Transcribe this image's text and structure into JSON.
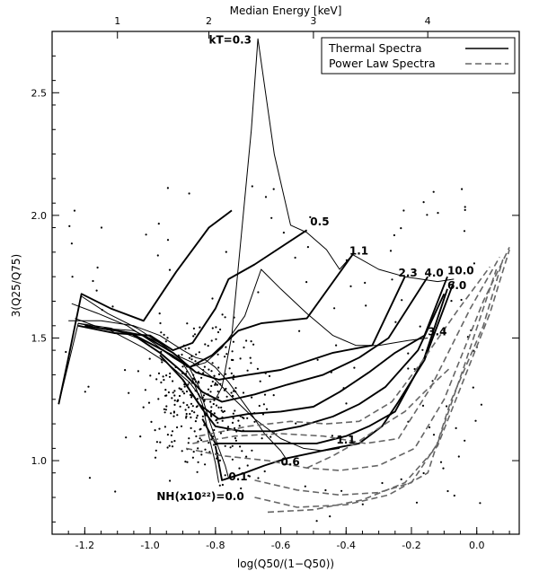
{
  "chart_data": {
    "type": "line",
    "title": "",
    "xlabel": "log(Q50/(1−Q50))",
    "ylabel": "3(Q25/Q75)",
    "top_axis_label": "Median Energy [keV]",
    "xlim": [
      -1.3,
      0.13
    ],
    "ylim": [
      0.7,
      2.75
    ],
    "x_ticks": [
      -1.2,
      -1.0,
      -0.8,
      -0.6,
      -0.4,
      -0.2,
      0.0
    ],
    "y_ticks": [
      1.0,
      1.5,
      2.0,
      2.5
    ],
    "top_ticks": [
      {
        "label": "1",
        "x": -1.1
      },
      {
        "label": "2",
        "x": -0.82
      },
      {
        "label": "3",
        "x": -0.5
      },
      {
        "label": "4",
        "x": -0.15
      }
    ],
    "legend": {
      "position": "top-right",
      "entries": [
        {
          "label": "Thermal Spectra",
          "style": "solid"
        },
        {
          "label": "Power Law Spectra",
          "style": "dashed"
        }
      ]
    },
    "annotations": [
      {
        "text": "kT=0.3",
        "x": -0.82,
        "y": 2.7
      },
      {
        "text": "0.5",
        "x": -0.51,
        "y": 1.96
      },
      {
        "text": "1.1",
        "x": -0.39,
        "y": 1.84
      },
      {
        "text": "2.3",
        "x": -0.24,
        "y": 1.75
      },
      {
        "text": "4.0",
        "x": -0.16,
        "y": 1.75
      },
      {
        "text": "10.0",
        "x": -0.09,
        "y": 1.76
      },
      {
        "text": "6.0",
        "x": -0.09,
        "y": 1.7
      },
      {
        "text": "3.4",
        "x": -0.15,
        "y": 1.51
      },
      {
        "text": "1.1",
        "x": -0.43,
        "y": 1.07
      },
      {
        "text": "0.6",
        "x": -0.6,
        "y": 0.98
      },
      {
        "text": "0.1",
        "x": -0.76,
        "y": 0.92
      },
      {
        "text": "NH(x10²²)=0.0",
        "x": -0.98,
        "y": 0.84
      }
    ],
    "series": [
      {
        "kind": "temperature",
        "style": "thin",
        "points": [
          [
            -1.28,
            1.23
          ],
          [
            -1.22,
            1.56
          ],
          [
            -1.12,
            1.53
          ],
          [
            -1.02,
            1.46
          ],
          [
            -0.95,
            1.4
          ],
          [
            -0.88,
            1.32
          ],
          [
            -0.84,
            1.25
          ],
          [
            -0.8,
            1.25
          ],
          [
            -0.78,
            1.3
          ],
          [
            -0.75,
            1.51
          ],
          [
            -0.72,
            1.93
          ],
          [
            -0.69,
            2.35
          ],
          [
            -0.67,
            2.72
          ],
          [
            -0.62,
            2.25
          ],
          [
            -0.57,
            1.96
          ],
          [
            -0.52,
            1.93
          ],
          [
            -0.46,
            1.86
          ],
          [
            -0.42,
            1.78
          ],
          [
            -0.38,
            1.84
          ],
          [
            -0.3,
            1.78
          ],
          [
            -0.22,
            1.75
          ],
          [
            -0.12,
            1.73
          ],
          [
            -0.07,
            1.74
          ]
        ]
      },
      {
        "kind": "temperature",
        "style": "thin",
        "points": [
          [
            -1.22,
            1.56
          ],
          [
            -1.12,
            1.54
          ],
          [
            -1.02,
            1.49
          ],
          [
            -0.93,
            1.43
          ],
          [
            -0.88,
            1.38
          ],
          [
            -0.83,
            1.4
          ],
          [
            -0.78,
            1.46
          ],
          [
            -0.71,
            1.59
          ],
          [
            -0.66,
            1.78
          ],
          [
            -0.6,
            1.7
          ],
          [
            -0.52,
            1.6
          ],
          [
            -0.44,
            1.51
          ],
          [
            -0.37,
            1.47
          ],
          [
            -0.3,
            1.47
          ],
          [
            -0.21,
            1.49
          ],
          [
            -0.15,
            1.5
          ]
        ]
      },
      {
        "kind": "temperature",
        "style": "thin",
        "points": [
          [
            -1.23,
            1.58
          ],
          [
            -1.15,
            1.54
          ],
          [
            -1.05,
            1.53
          ],
          [
            -0.97,
            1.48
          ],
          [
            -0.92,
            1.43
          ],
          [
            -0.87,
            1.4
          ],
          [
            -0.84,
            1.37
          ],
          [
            -0.8,
            1.33
          ],
          [
            -0.75,
            1.26
          ],
          [
            -0.68,
            1.17
          ],
          [
            -0.6,
            1.09
          ],
          [
            -0.53,
            1.05
          ],
          [
            -0.47,
            1.04
          ],
          [
            -0.42,
            1.05
          ]
        ]
      },
      {
        "kind": "temperature",
        "style": "thin",
        "points": [
          [
            -1.25,
            1.57
          ],
          [
            -1.15,
            1.57
          ],
          [
            -1.05,
            1.55
          ],
          [
            -0.97,
            1.51
          ],
          [
            -0.9,
            1.45
          ],
          [
            -0.86,
            1.42
          ],
          [
            -0.83,
            1.41
          ],
          [
            -0.8,
            1.38
          ],
          [
            -0.76,
            1.32
          ],
          [
            -0.7,
            1.21
          ],
          [
            -0.65,
            1.11
          ],
          [
            -0.6,
            1.04
          ],
          [
            -0.58,
            1.0
          ]
        ]
      },
      {
        "kind": "temperature",
        "style": "thin",
        "points": [
          [
            -1.24,
            1.64
          ],
          [
            -1.16,
            1.6
          ],
          [
            -1.07,
            1.55
          ],
          [
            -0.99,
            1.48
          ],
          [
            -0.93,
            1.42
          ],
          [
            -0.88,
            1.38
          ],
          [
            -0.85,
            1.3
          ],
          [
            -0.82,
            1.17
          ],
          [
            -0.79,
            1.05
          ],
          [
            -0.77,
            0.98
          ],
          [
            -0.76,
            0.93
          ]
        ]
      },
      {
        "kind": "temperature",
        "style": "thin",
        "points": [
          [
            -1.21,
            1.67
          ],
          [
            -1.13,
            1.6
          ],
          [
            -1.04,
            1.54
          ],
          [
            -0.96,
            1.47
          ],
          [
            -0.91,
            1.42
          ],
          [
            -0.87,
            1.33
          ],
          [
            -0.84,
            1.23
          ],
          [
            -0.82,
            1.1
          ],
          [
            -0.8,
            0.99
          ],
          [
            -0.79,
            0.91
          ]
        ]
      },
      {
        "kind": "absorption",
        "style": "thick",
        "points": [
          [
            -1.28,
            1.23
          ],
          [
            -1.25,
            1.42
          ],
          [
            -1.21,
            1.68
          ],
          [
            -1.12,
            1.62
          ],
          [
            -1.02,
            1.57
          ],
          [
            -0.92,
            1.77
          ],
          [
            -0.82,
            1.95
          ],
          [
            -0.75,
            2.02
          ]
        ]
      },
      {
        "kind": "absorption",
        "style": "thick",
        "points": [
          [
            -1.22,
            1.55
          ],
          [
            -1.11,
            1.52
          ],
          [
            -1.0,
            1.51
          ],
          [
            -0.93,
            1.45
          ],
          [
            -0.87,
            1.48
          ],
          [
            -0.8,
            1.62
          ],
          [
            -0.76,
            1.74
          ],
          [
            -0.68,
            1.8
          ],
          [
            -0.52,
            1.94
          ]
        ]
      },
      {
        "kind": "absorption",
        "style": "thick",
        "points": [
          [
            -1.2,
            1.55
          ],
          [
            -1.06,
            1.52
          ],
          [
            -0.96,
            1.45
          ],
          [
            -0.88,
            1.38
          ],
          [
            -0.81,
            1.43
          ],
          [
            -0.73,
            1.53
          ],
          [
            -0.66,
            1.56
          ],
          [
            -0.52,
            1.58
          ],
          [
            -0.38,
            1.84
          ]
        ]
      },
      {
        "kind": "absorption",
        "style": "thick",
        "points": [
          [
            -1.14,
            1.54
          ],
          [
            -1.02,
            1.51
          ],
          [
            -0.93,
            1.44
          ],
          [
            -0.86,
            1.36
          ],
          [
            -0.79,
            1.33
          ],
          [
            -0.7,
            1.35
          ],
          [
            -0.6,
            1.37
          ],
          [
            -0.44,
            1.44
          ],
          [
            -0.32,
            1.47
          ],
          [
            -0.22,
            1.75
          ]
        ]
      },
      {
        "kind": "absorption",
        "style": "thick",
        "points": [
          [
            -1.06,
            1.52
          ],
          [
            -0.97,
            1.44
          ],
          [
            -0.9,
            1.36
          ],
          [
            -0.84,
            1.28
          ],
          [
            -0.78,
            1.24
          ],
          [
            -0.68,
            1.27
          ],
          [
            -0.58,
            1.31
          ],
          [
            -0.47,
            1.35
          ],
          [
            -0.36,
            1.42
          ],
          [
            -0.27,
            1.5
          ],
          [
            -0.15,
            1.75
          ]
        ]
      },
      {
        "kind": "absorption",
        "style": "thick",
        "points": [
          [
            -0.97,
            1.43
          ],
          [
            -0.9,
            1.33
          ],
          [
            -0.85,
            1.23
          ],
          [
            -0.79,
            1.17
          ],
          [
            -0.7,
            1.19
          ],
          [
            -0.6,
            1.2
          ],
          [
            -0.5,
            1.22
          ],
          [
            -0.42,
            1.28
          ],
          [
            -0.33,
            1.36
          ],
          [
            -0.25,
            1.44
          ],
          [
            -0.16,
            1.51
          ],
          [
            -0.09,
            1.75
          ]
        ]
      },
      {
        "kind": "absorption",
        "style": "thick",
        "points": [
          [
            -0.9,
            1.33
          ],
          [
            -0.84,
            1.21
          ],
          [
            -0.8,
            1.14
          ],
          [
            -0.72,
            1.12
          ],
          [
            -0.62,
            1.12
          ],
          [
            -0.54,
            1.14
          ],
          [
            -0.44,
            1.18
          ],
          [
            -0.36,
            1.23
          ],
          [
            -0.28,
            1.3
          ],
          [
            -0.18,
            1.45
          ],
          [
            -0.1,
            1.68
          ]
        ]
      },
      {
        "kind": "absorption",
        "style": "thick",
        "points": [
          [
            -0.84,
            1.17
          ],
          [
            -0.8,
            1.07
          ],
          [
            -0.74,
            1.07
          ],
          [
            -0.65,
            1.07
          ],
          [
            -0.56,
            1.07
          ],
          [
            -0.49,
            1.07
          ],
          [
            -0.4,
            1.1
          ],
          [
            -0.33,
            1.14
          ],
          [
            -0.25,
            1.2
          ],
          [
            -0.16,
            1.42
          ],
          [
            -0.09,
            1.7
          ]
        ]
      },
      {
        "kind": "absorption",
        "style": "thick",
        "points": [
          [
            -0.8,
            1.06
          ],
          [
            -0.78,
            0.92
          ],
          [
            -0.71,
            0.95
          ],
          [
            -0.65,
            0.98
          ],
          [
            -0.58,
            1.01
          ],
          [
            -0.51,
            1.03
          ],
          [
            -0.44,
            1.05
          ],
          [
            -0.36,
            1.07
          ],
          [
            -0.29,
            1.14
          ],
          [
            -0.24,
            1.24
          ],
          [
            -0.16,
            1.41
          ],
          [
            -0.07,
            1.73
          ]
        ]
      },
      {
        "kind": "power-law",
        "style": "dashed",
        "points": [
          [
            -0.89,
            1.05
          ],
          [
            -0.78,
            1.02
          ],
          [
            -0.64,
            1.0
          ],
          [
            -0.52,
            0.97
          ],
          [
            -0.42,
            0.96
          ],
          [
            -0.3,
            0.98
          ],
          [
            -0.19,
            1.05
          ],
          [
            -0.1,
            1.25
          ],
          [
            0.02,
            1.65
          ],
          [
            0.1,
            1.87
          ]
        ]
      },
      {
        "kind": "power-law",
        "style": "dashed",
        "points": [
          [
            -0.87,
            1.07
          ],
          [
            -0.74,
            1.1
          ],
          [
            -0.6,
            1.11
          ],
          [
            -0.47,
            1.1
          ],
          [
            -0.34,
            1.07
          ],
          [
            -0.24,
            1.09
          ],
          [
            -0.14,
            1.3
          ],
          [
            -0.02,
            1.62
          ],
          [
            0.07,
            1.83
          ]
        ]
      },
      {
        "kind": "power-law",
        "style": "dashed",
        "points": [
          [
            -0.85,
            1.1
          ],
          [
            -0.7,
            1.14
          ],
          [
            -0.57,
            1.16
          ],
          [
            -0.46,
            1.15
          ],
          [
            -0.36,
            1.16
          ],
          [
            -0.26,
            1.24
          ],
          [
            -0.17,
            1.4
          ],
          [
            -0.06,
            1.61
          ],
          [
            0.04,
            1.79
          ]
        ]
      },
      {
        "kind": "power-law",
        "style": "dashed",
        "points": [
          [
            -0.68,
            0.92
          ],
          [
            -0.55,
            0.88
          ],
          [
            -0.42,
            0.86
          ],
          [
            -0.3,
            0.87
          ],
          [
            -0.2,
            0.91
          ],
          [
            -0.12,
            1.07
          ],
          [
            -0.04,
            1.38
          ],
          [
            0.06,
            1.78
          ]
        ]
      },
      {
        "kind": "power-law",
        "style": "dashed",
        "points": [
          [
            -0.68,
            0.85
          ],
          [
            -0.55,
            0.81
          ],
          [
            -0.4,
            0.82
          ],
          [
            -0.27,
            0.86
          ],
          [
            -0.15,
            0.95
          ],
          [
            -0.08,
            1.24
          ],
          [
            0.02,
            1.55
          ],
          [
            0.08,
            1.82
          ]
        ]
      },
      {
        "kind": "power-law",
        "style": "dashed",
        "points": [
          [
            -0.64,
            0.79
          ],
          [
            -0.5,
            0.8
          ],
          [
            -0.35,
            0.84
          ],
          [
            -0.22,
            0.91
          ],
          [
            -0.12,
            1.06
          ],
          [
            -0.04,
            1.33
          ],
          [
            0.04,
            1.6
          ],
          [
            0.1,
            1.86
          ]
        ]
      },
      {
        "kind": "power-law",
        "style": "dashed",
        "points": [
          [
            -0.52,
            0.97
          ],
          [
            -0.44,
            1.02
          ],
          [
            -0.36,
            1.08
          ],
          [
            -0.28,
            1.15
          ],
          [
            -0.22,
            1.2
          ],
          [
            -0.16,
            1.28
          ],
          [
            -0.08,
            1.38
          ]
        ]
      }
    ]
  }
}
